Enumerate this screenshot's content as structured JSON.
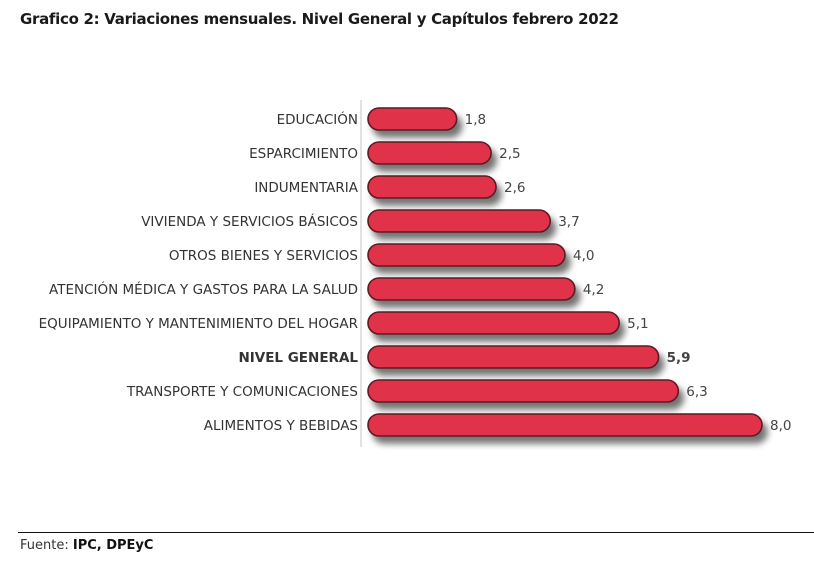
{
  "chart_data": {
    "type": "bar",
    "orientation": "horizontal",
    "title": "Grafico 2: Variaciones mensuales.  Nivel General y Capítulos  febrero  2022",
    "xlabel": "",
    "ylabel": "",
    "xlim": [
      0,
      8.5
    ],
    "grid": false,
    "legend": "none",
    "bar_color": "#e0334a",
    "bar_edge_color": "#5a1a22",
    "highlight_category": "NIVEL GENERAL",
    "categories": [
      "EDUCACIÓN",
      "ESPARCIMIENTO",
      "INDUMENTARIA",
      "VIVIENDA Y SERVICIOS BÁSICOS",
      "OTROS BIENES Y SERVICIOS",
      "ATENCIÓN MÉDICA Y GASTOS PARA LA SALUD",
      "EQUIPAMIENTO Y MANTENIMIENTO DEL HOGAR",
      "NIVEL GENERAL",
      "TRANSPORTE Y COMUNICACIONES",
      "ALIMENTOS Y BEBIDAS"
    ],
    "values": [
      1.8,
      2.5,
      2.6,
      3.7,
      4.0,
      4.2,
      5.1,
      5.9,
      6.3,
      8.0
    ],
    "value_labels": [
      "1,8",
      "2,5",
      "2,6",
      "3,7",
      "4,0",
      "4,2",
      "5,1",
      "5,9",
      "6,3",
      "8,0"
    ]
  },
  "footer": {
    "source_prefix": "Fuente: ",
    "source_value": "IPC, DPEyC"
  }
}
